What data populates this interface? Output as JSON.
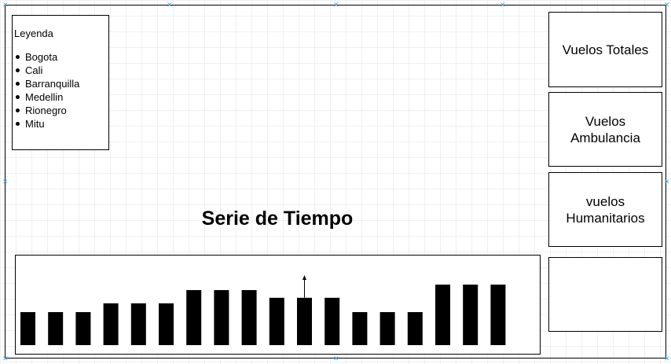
{
  "legend": {
    "title": "Leyenda",
    "items": [
      "Bogota",
      "Cali",
      "Barranquilla",
      "Medellin",
      "Rionegro",
      "Mitu"
    ]
  },
  "title": "Serie de Tiempo",
  "cards": {
    "total": "Vuelos Totales",
    "ambulance_line1": "Vuelos",
    "ambulance_line2": "Ambulancia",
    "humanitarian_line1": "vuelos",
    "humanitarian_line2": "Humanitarios",
    "empty": ""
  },
  "chart_data": {
    "type": "bar",
    "values": [
      3,
      3,
      3,
      3.8,
      3.8,
      3.8,
      5,
      5,
      5,
      4.3,
      4.3,
      4.3,
      3,
      3,
      3,
      5.5,
      5.5,
      5.5
    ],
    "ylim": [
      0,
      8
    ],
    "marker_index": 10
  },
  "colors": {
    "bar": "#000000",
    "anchor": "#4aa3df"
  }
}
